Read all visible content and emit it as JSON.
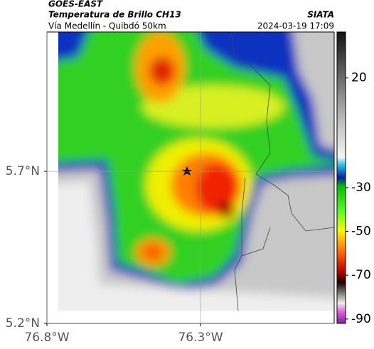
{
  "header": {
    "title": "GOES-EAST",
    "subtitle": "Temperatura de Brillo CH13",
    "location": "Vía Medellín - Quibdó 50km",
    "source": "SIATA",
    "datetime": "2024-03-19 17:09"
  },
  "map": {
    "lonlim": [
      -76.8,
      -75.865
    ],
    "latlim": [
      5.2,
      6.158
    ],
    "lonticks": [
      {
        "value": -76.8,
        "label": "76.8°W"
      },
      {
        "value": -76.3,
        "label": "76.3°W"
      }
    ],
    "latticks": [
      {
        "value": 5.7,
        "label": "5.7°N"
      },
      {
        "value": 5.2,
        "label": "5.2°N"
      }
    ],
    "grid": true
  },
  "colorbar": {
    "lim": [
      41,
      -92
    ],
    "ticks": [
      20,
      -30,
      -50,
      -70,
      -90
    ]
  }
}
